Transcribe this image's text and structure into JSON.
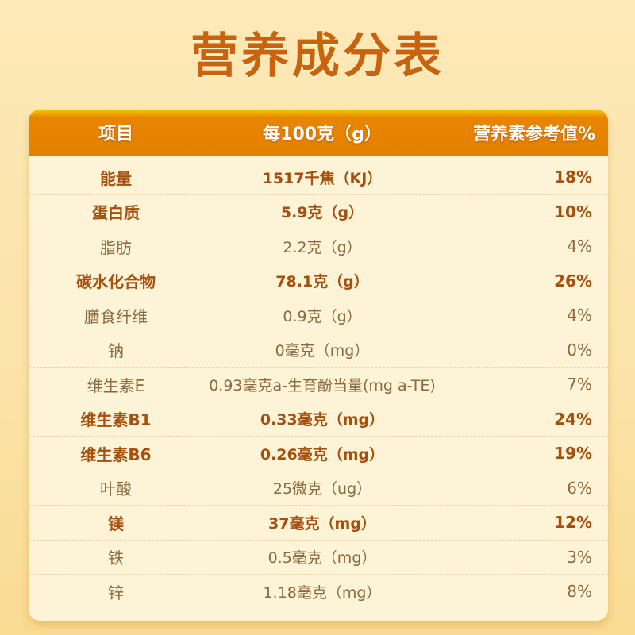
{
  "title": "营养成分表",
  "colors": {
    "header": "#e48000",
    "title": "#c8640f",
    "bold_text": "#a4500f",
    "text": "#8a6a3e",
    "table_bg": "#fdf3d6"
  },
  "headers": [
    "项目",
    "每100克（g）",
    "营养素参考值%"
  ],
  "rows": [
    {
      "item": "能量",
      "amount": "1517千焦（KJ）",
      "nrv": "18%",
      "bold": true
    },
    {
      "item": "蛋白质",
      "amount": "5.9克（g）",
      "nrv": "10%",
      "bold": true
    },
    {
      "item": "脂肪",
      "amount": "2.2克（g）",
      "nrv": "4%",
      "bold": false
    },
    {
      "item": "碳水化合物",
      "amount": "78.1克（g）",
      "nrv": "26%",
      "bold": true
    },
    {
      "item": "膳食纤维",
      "amount": "0.9克（g）",
      "nrv": "4%",
      "bold": false
    },
    {
      "item": "钠",
      "amount": "0毫克（mg）",
      "nrv": "0%",
      "bold": false
    },
    {
      "item": "维生素E",
      "amount": "0.93毫克a-生育酚当量(mg a-TE)",
      "nrv": "7%",
      "bold": false
    },
    {
      "item": "维生素B1",
      "amount": "0.33毫克（mg）",
      "nrv": "24%",
      "bold": true
    },
    {
      "item": "维生素B6",
      "amount": "0.26毫克（mg）",
      "nrv": "19%",
      "bold": true
    },
    {
      "item": "叶酸",
      "amount": "25微克（ug）",
      "nrv": "6%",
      "bold": false
    },
    {
      "item": "镁",
      "amount": "37毫克（mg）",
      "nrv": "12%",
      "bold": true
    },
    {
      "item": "铁",
      "amount": "0.5毫克（mg）",
      "nrv": "3%",
      "bold": false
    },
    {
      "item": "锌",
      "amount": "1.18毫克（mg）",
      "nrv": "8%",
      "bold": false
    }
  ]
}
